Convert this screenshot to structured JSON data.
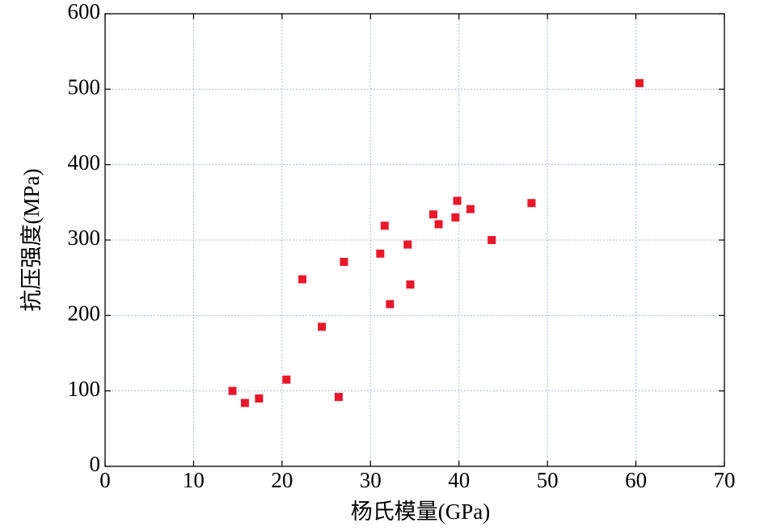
{
  "chart_data": {
    "type": "scatter",
    "xlabel": "杨氏模量(GPa)",
    "ylabel": "抗压强度(MPa)",
    "x": [
      14.4,
      15.8,
      17.4,
      20.5,
      22.3,
      24.5,
      26.4,
      27.0,
      31.1,
      31.6,
      32.2,
      34.2,
      34.5,
      37.1,
      37.7,
      39.6,
      39.8,
      41.3,
      43.7,
      48.2,
      60.4
    ],
    "values": [
      100,
      84,
      90,
      115,
      248,
      185,
      92,
      271,
      282,
      319,
      215,
      294,
      241,
      334,
      321,
      330,
      352,
      341,
      300,
      349,
      508
    ],
    "color": "#e8182a",
    "xlim": [
      0,
      70
    ],
    "xticks": [
      0,
      10,
      20,
      30,
      40,
      50,
      60,
      70
    ],
    "ylim": [
      0,
      600
    ],
    "yticks": [
      0,
      100,
      200,
      300,
      400,
      500,
      600
    ],
    "grid": true
  }
}
